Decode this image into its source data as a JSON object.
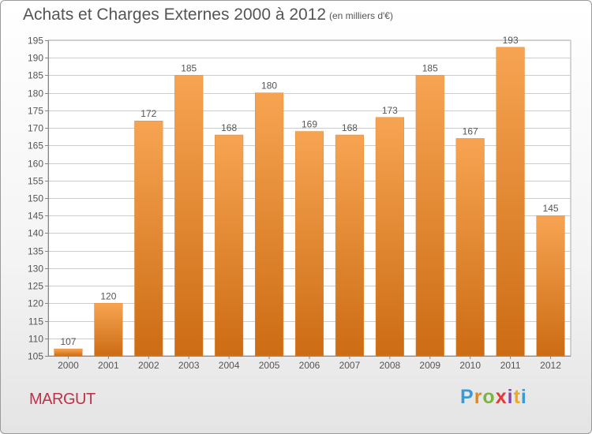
{
  "header": {
    "title": "Achats et Charges Externes 2000 à 2012",
    "unit": "(en milliers d'€)"
  },
  "footer": {
    "place": "MARGUT",
    "logo_letters": [
      "P",
      "r",
      "o",
      "x",
      "i",
      "t",
      "i"
    ]
  },
  "colors": {
    "bar_top": "#f7a452",
    "bar_bottom": "#cc6c14",
    "grid": "#cccccc",
    "text": "#555555",
    "place": "#c03048"
  },
  "chart_data": {
    "type": "bar",
    "title": "Achats et Charges Externes 2000 à 2012",
    "subtitle": "(en milliers d'€)",
    "categories": [
      "2000",
      "2001",
      "2002",
      "2003",
      "2004",
      "2005",
      "2006",
      "2007",
      "2008",
      "2009",
      "2010",
      "2011",
      "2012"
    ],
    "values": [
      107,
      120,
      172,
      185,
      168,
      180,
      169,
      168,
      173,
      185,
      167,
      193,
      145
    ],
    "ylim": [
      105,
      195
    ],
    "yticks": [
      105,
      110,
      115,
      120,
      125,
      130,
      135,
      140,
      145,
      150,
      155,
      160,
      165,
      170,
      175,
      180,
      185,
      190,
      195
    ],
    "grid": true,
    "data_labels": true
  }
}
